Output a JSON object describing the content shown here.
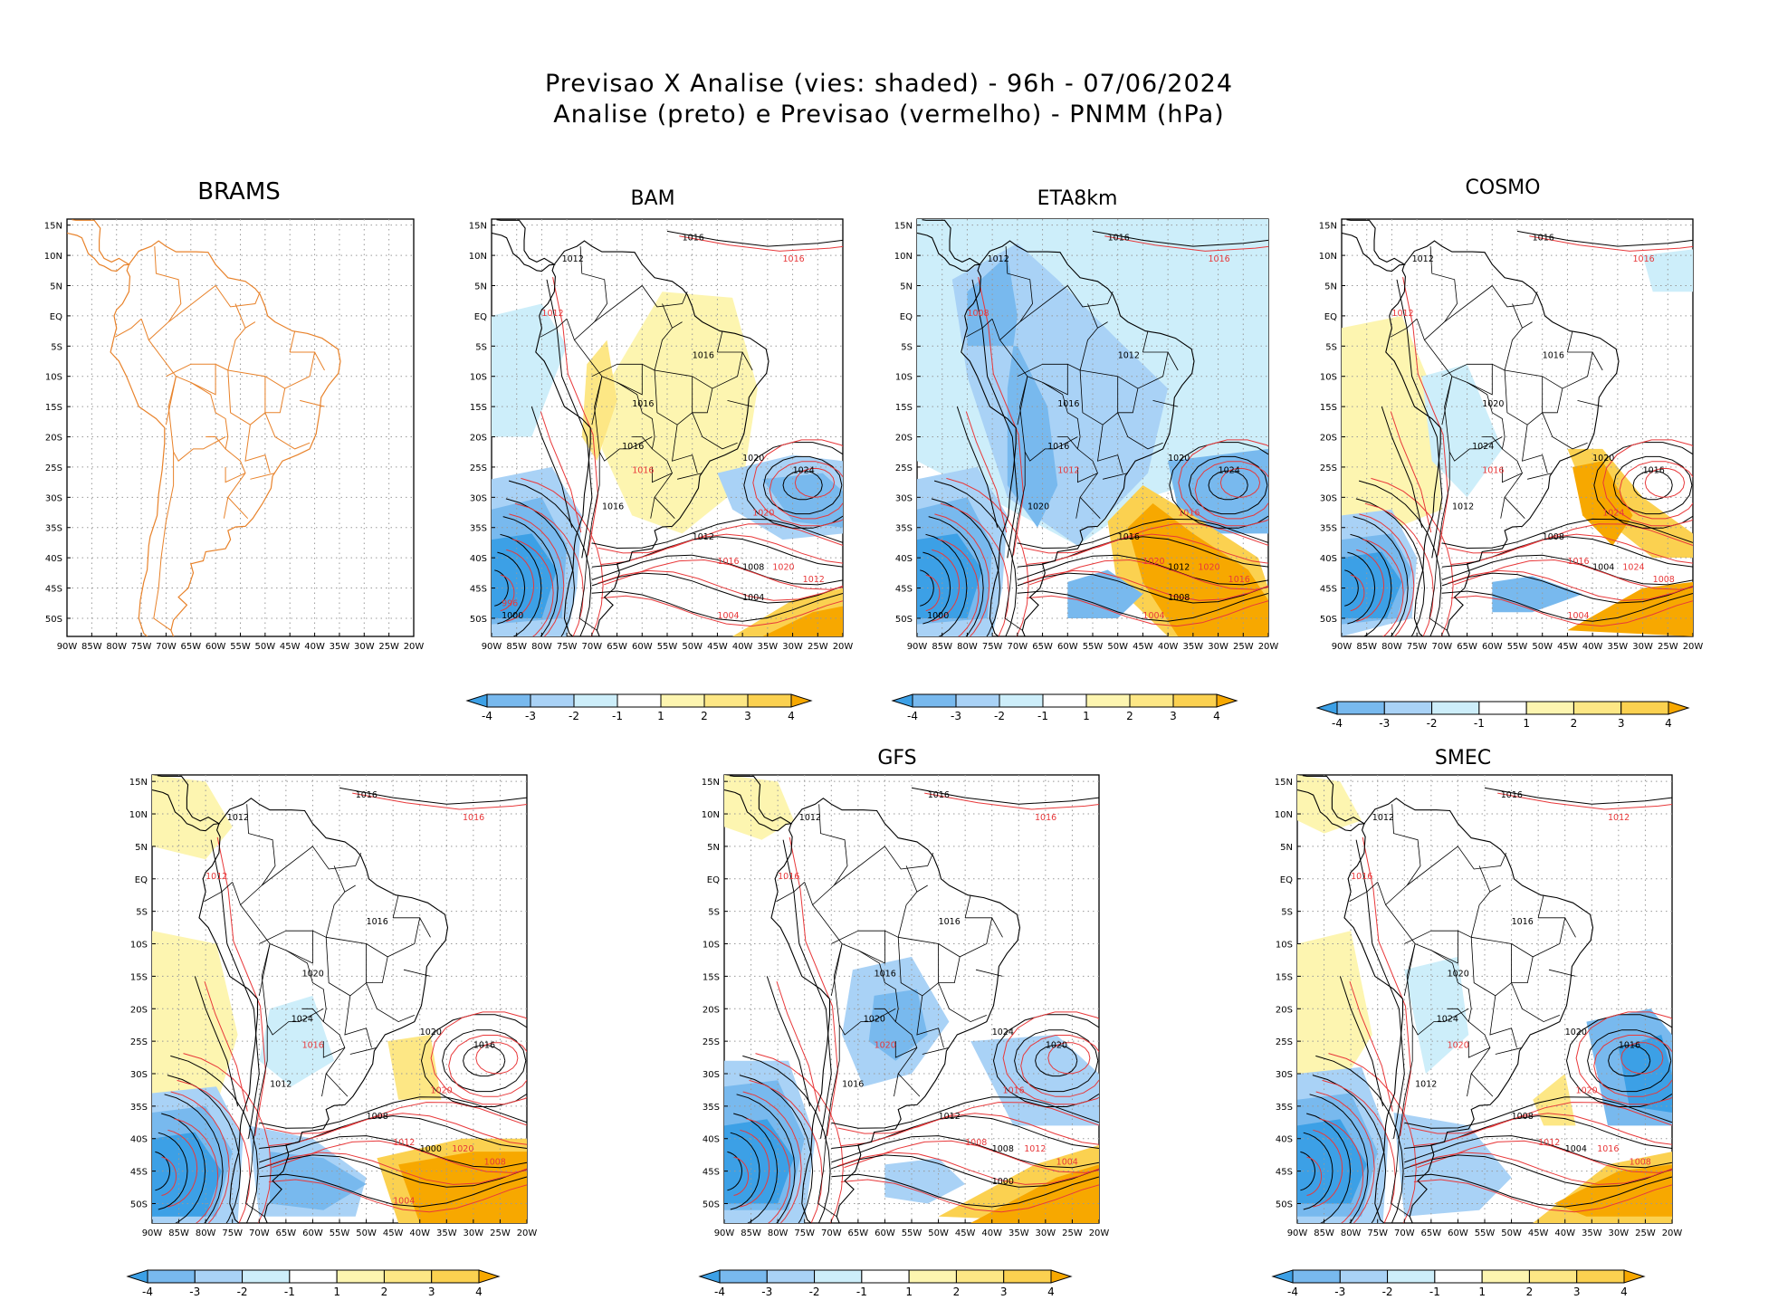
{
  "figure": {
    "title_line1": "Previsao X Analise (vies: shaded) - 96h - 07/06/2024",
    "title_line2": "Analise (preto) e Previsao (vermelho) - PNMM (hPa)"
  },
  "axes": {
    "lat_labels": [
      "15N",
      "10N",
      "5N",
      "EQ",
      "5S",
      "10S",
      "15S",
      "20S",
      "25S",
      "30S",
      "35S",
      "40S",
      "45S",
      "50S"
    ],
    "lon_labels": [
      "90W",
      "85W",
      "80W",
      "75W",
      "70W",
      "65W",
      "60W",
      "55W",
      "50W",
      "45W",
      "40W",
      "35W",
      "30W",
      "25W",
      "20W"
    ]
  },
  "colorbar": {
    "labels": [
      "-4",
      "-3",
      "-2",
      "-1",
      "1",
      "2",
      "3",
      "4"
    ],
    "colors": [
      "#3ca0e6",
      "#78b9ee",
      "#a9d2f6",
      "#cdeefa",
      "#ffffff",
      "#fdf5b0",
      "#fde785",
      "#fbd150",
      "#f7a800"
    ]
  },
  "colors": {
    "analysis_contour": "#000000",
    "forecast_contour": "#e8383a",
    "brams_outline": "#e8822a"
  },
  "panels": [
    {
      "id": "brams",
      "title": "BRAMS",
      "has_colorbar": false,
      "labels_black": [],
      "labels_red": []
    },
    {
      "id": "bam",
      "title": "BAM",
      "has_colorbar": true,
      "labels_black": [
        "1016",
        "1012",
        "1016",
        "1016",
        "1016",
        "1020",
        "1024",
        "1016",
        "1012",
        "1008",
        "1004",
        "1000"
      ],
      "labels_red": [
        "1016",
        "1012",
        "1016",
        "1020",
        "1020",
        "1016",
        "1012",
        "1004",
        "996"
      ]
    },
    {
      "id": "eta8km",
      "title": "ETA8km",
      "has_colorbar": true,
      "labels_black": [
        "1016",
        "1012",
        "1012",
        "1016",
        "1016",
        "1020",
        "1024",
        "1020",
        "1016",
        "1012",
        "1008",
        "1000"
      ],
      "labels_red": [
        "1016",
        "1008",
        "1012",
        "1016",
        "1020",
        "1020",
        "1016",
        "1004"
      ]
    },
    {
      "id": "cosmo",
      "title": "COSMO",
      "has_colorbar": true,
      "labels_black": [
        "1016",
        "1012",
        "1016",
        "1020",
        "1024",
        "1020",
        "1016",
        "1012",
        "1008",
        "1004"
      ],
      "labels_red": [
        "1016",
        "1012",
        "1016",
        "1024",
        "1024",
        "1016",
        "1008",
        "1004"
      ]
    },
    {
      "id": "ukmo",
      "title": "",
      "has_colorbar": true,
      "labels_black": [
        "1016",
        "1012",
        "1016",
        "1020",
        "1024",
        "1020",
        "1016",
        "1012",
        "1008",
        "1000"
      ],
      "labels_red": [
        "1016",
        "1012",
        "1016",
        "1020",
        "1020",
        "1012",
        "1008",
        "1004"
      ]
    },
    {
      "id": "gfs",
      "title": "GFS",
      "has_colorbar": true,
      "labels_black": [
        "1016",
        "1012",
        "1016",
        "1016",
        "1020",
        "1024",
        "1020",
        "1016",
        "1012",
        "1008",
        "1000"
      ],
      "labels_red": [
        "1016",
        "1016",
        "1020",
        "1016",
        "1012",
        "1008",
        "1004"
      ]
    },
    {
      "id": "smec",
      "title": "SMEC",
      "has_colorbar": true,
      "labels_black": [
        "1016",
        "1012",
        "1016",
        "1020",
        "1024",
        "1020",
        "1016",
        "1012",
        "1008",
        "1004"
      ],
      "labels_red": [
        "1012",
        "1016",
        "1020",
        "1020",
        "1016",
        "1012",
        "1008"
      ]
    }
  ]
}
